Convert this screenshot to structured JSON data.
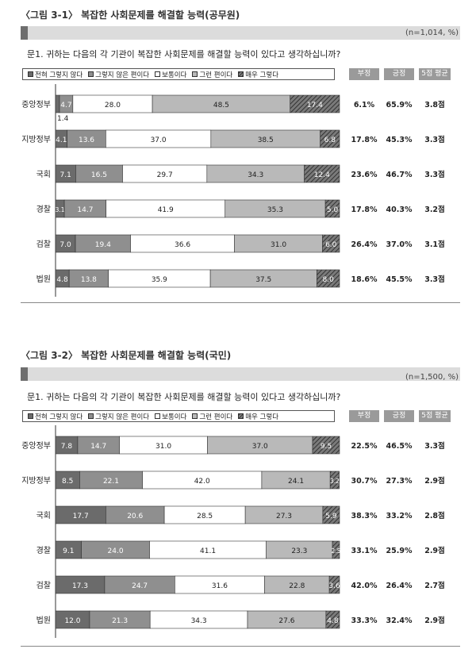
{
  "legend_labels": [
    "전혀 그렇지 않다",
    "그렇지 않은 편이다",
    "보통이다",
    "그런 편이다",
    "매우 그렇다"
  ],
  "headers": [
    "부정",
    "긍정",
    "5점 평균"
  ],
  "colors": {
    "seg": [
      "#6b6b6b",
      "#8f8f8f",
      "#ffffff",
      "#b9b9b9",
      "#4a4a4a"
    ],
    "header_bg": "#9a9a9a",
    "title_bar": "#dcdcdc",
    "title_cap": "#6e6e6e"
  },
  "figures": [
    {
      "title": "〈그림 3-1〉 복잡한 사회문제를 해결할 능력(공무원)",
      "note": "(n=1,014, %)",
      "question": "문1. 귀하는 다음의 각 기관이 복잡한 사회문제를 해결할 능력이 있다고 생각하십니까?"
    },
    {
      "title": "〈그림 3-2〉 복잡한 사회문제를 해결할 능력(국민)",
      "note": "(n=1,500, %)",
      "question": "문1. 귀하는 다음의 각 기관이 복잡한 사회문제를 해결할 능력이 있다고 생각하십니까?"
    }
  ],
  "chart_data": [
    {
      "type": "bar",
      "stacked": true,
      "orientation": "horizontal",
      "title": "〈그림 3-1〉 복잡한 사회문제를 해결할 능력(공무원)",
      "categories": [
        "중앙정부",
        "지방정부",
        "국회",
        "경찰",
        "검찰",
        "법원"
      ],
      "series": [
        {
          "name": "전혀 그렇지 않다",
          "values": [
            1.4,
            4.1,
            7.1,
            3.1,
            7.0,
            4.8
          ]
        },
        {
          "name": "그렇지 않은 편이다",
          "values": [
            4.7,
            13.6,
            16.5,
            14.7,
            19.4,
            13.8
          ]
        },
        {
          "name": "보통이다",
          "values": [
            28.0,
            37.0,
            29.7,
            41.9,
            36.6,
            35.9
          ]
        },
        {
          "name": "그런 편이다",
          "values": [
            48.5,
            38.5,
            34.3,
            35.3,
            31.0,
            37.5
          ]
        },
        {
          "name": "매우 그렇다",
          "values": [
            17.4,
            6.8,
            12.4,
            5.0,
            6.0,
            8.0
          ]
        }
      ],
      "table": {
        "부정": [
          "6.1%",
          "17.8%",
          "23.6%",
          "17.8%",
          "26.4%",
          "18.6%"
        ],
        "긍정": [
          "65.9%",
          "45.3%",
          "46.7%",
          "40.3%",
          "37.0%",
          "45.5%"
        ],
        "5점 평균": [
          "3.8점",
          "3.3점",
          "3.3점",
          "3.2점",
          "3.1점",
          "3.3점"
        ]
      }
    },
    {
      "type": "bar",
      "stacked": true,
      "orientation": "horizontal",
      "title": "〈그림 3-2〉 복잡한 사회문제를 해결할 능력(국민)",
      "categories": [
        "중앙정부",
        "지방정부",
        "국회",
        "경찰",
        "검찰",
        "법원"
      ],
      "series": [
        {
          "name": "전혀 그렇지 않다",
          "values": [
            7.8,
            8.5,
            17.7,
            9.1,
            17.3,
            12.0
          ]
        },
        {
          "name": "그렇지 않은 편이다",
          "values": [
            14.7,
            22.1,
            20.6,
            24.0,
            24.7,
            21.3
          ]
        },
        {
          "name": "보통이다",
          "values": [
            31.0,
            42.0,
            28.5,
            41.1,
            31.6,
            34.3
          ]
        },
        {
          "name": "그런 편이다",
          "values": [
            37.0,
            24.1,
            27.3,
            23.3,
            22.8,
            27.6
          ]
        },
        {
          "name": "매우 그렇다",
          "values": [
            9.5,
            3.2,
            5.9,
            2.5,
            3.6,
            4.8
          ]
        }
      ],
      "table": {
        "부정": [
          "22.5%",
          "30.7%",
          "38.3%",
          "33.1%",
          "42.0%",
          "33.3%"
        ],
        "긍정": [
          "46.5%",
          "27.3%",
          "33.2%",
          "25.9%",
          "26.4%",
          "32.4%"
        ],
        "5점 평균": [
          "3.3점",
          "2.9점",
          "2.8점",
          "2.9점",
          "2.7점",
          "2.9점"
        ]
      }
    }
  ]
}
